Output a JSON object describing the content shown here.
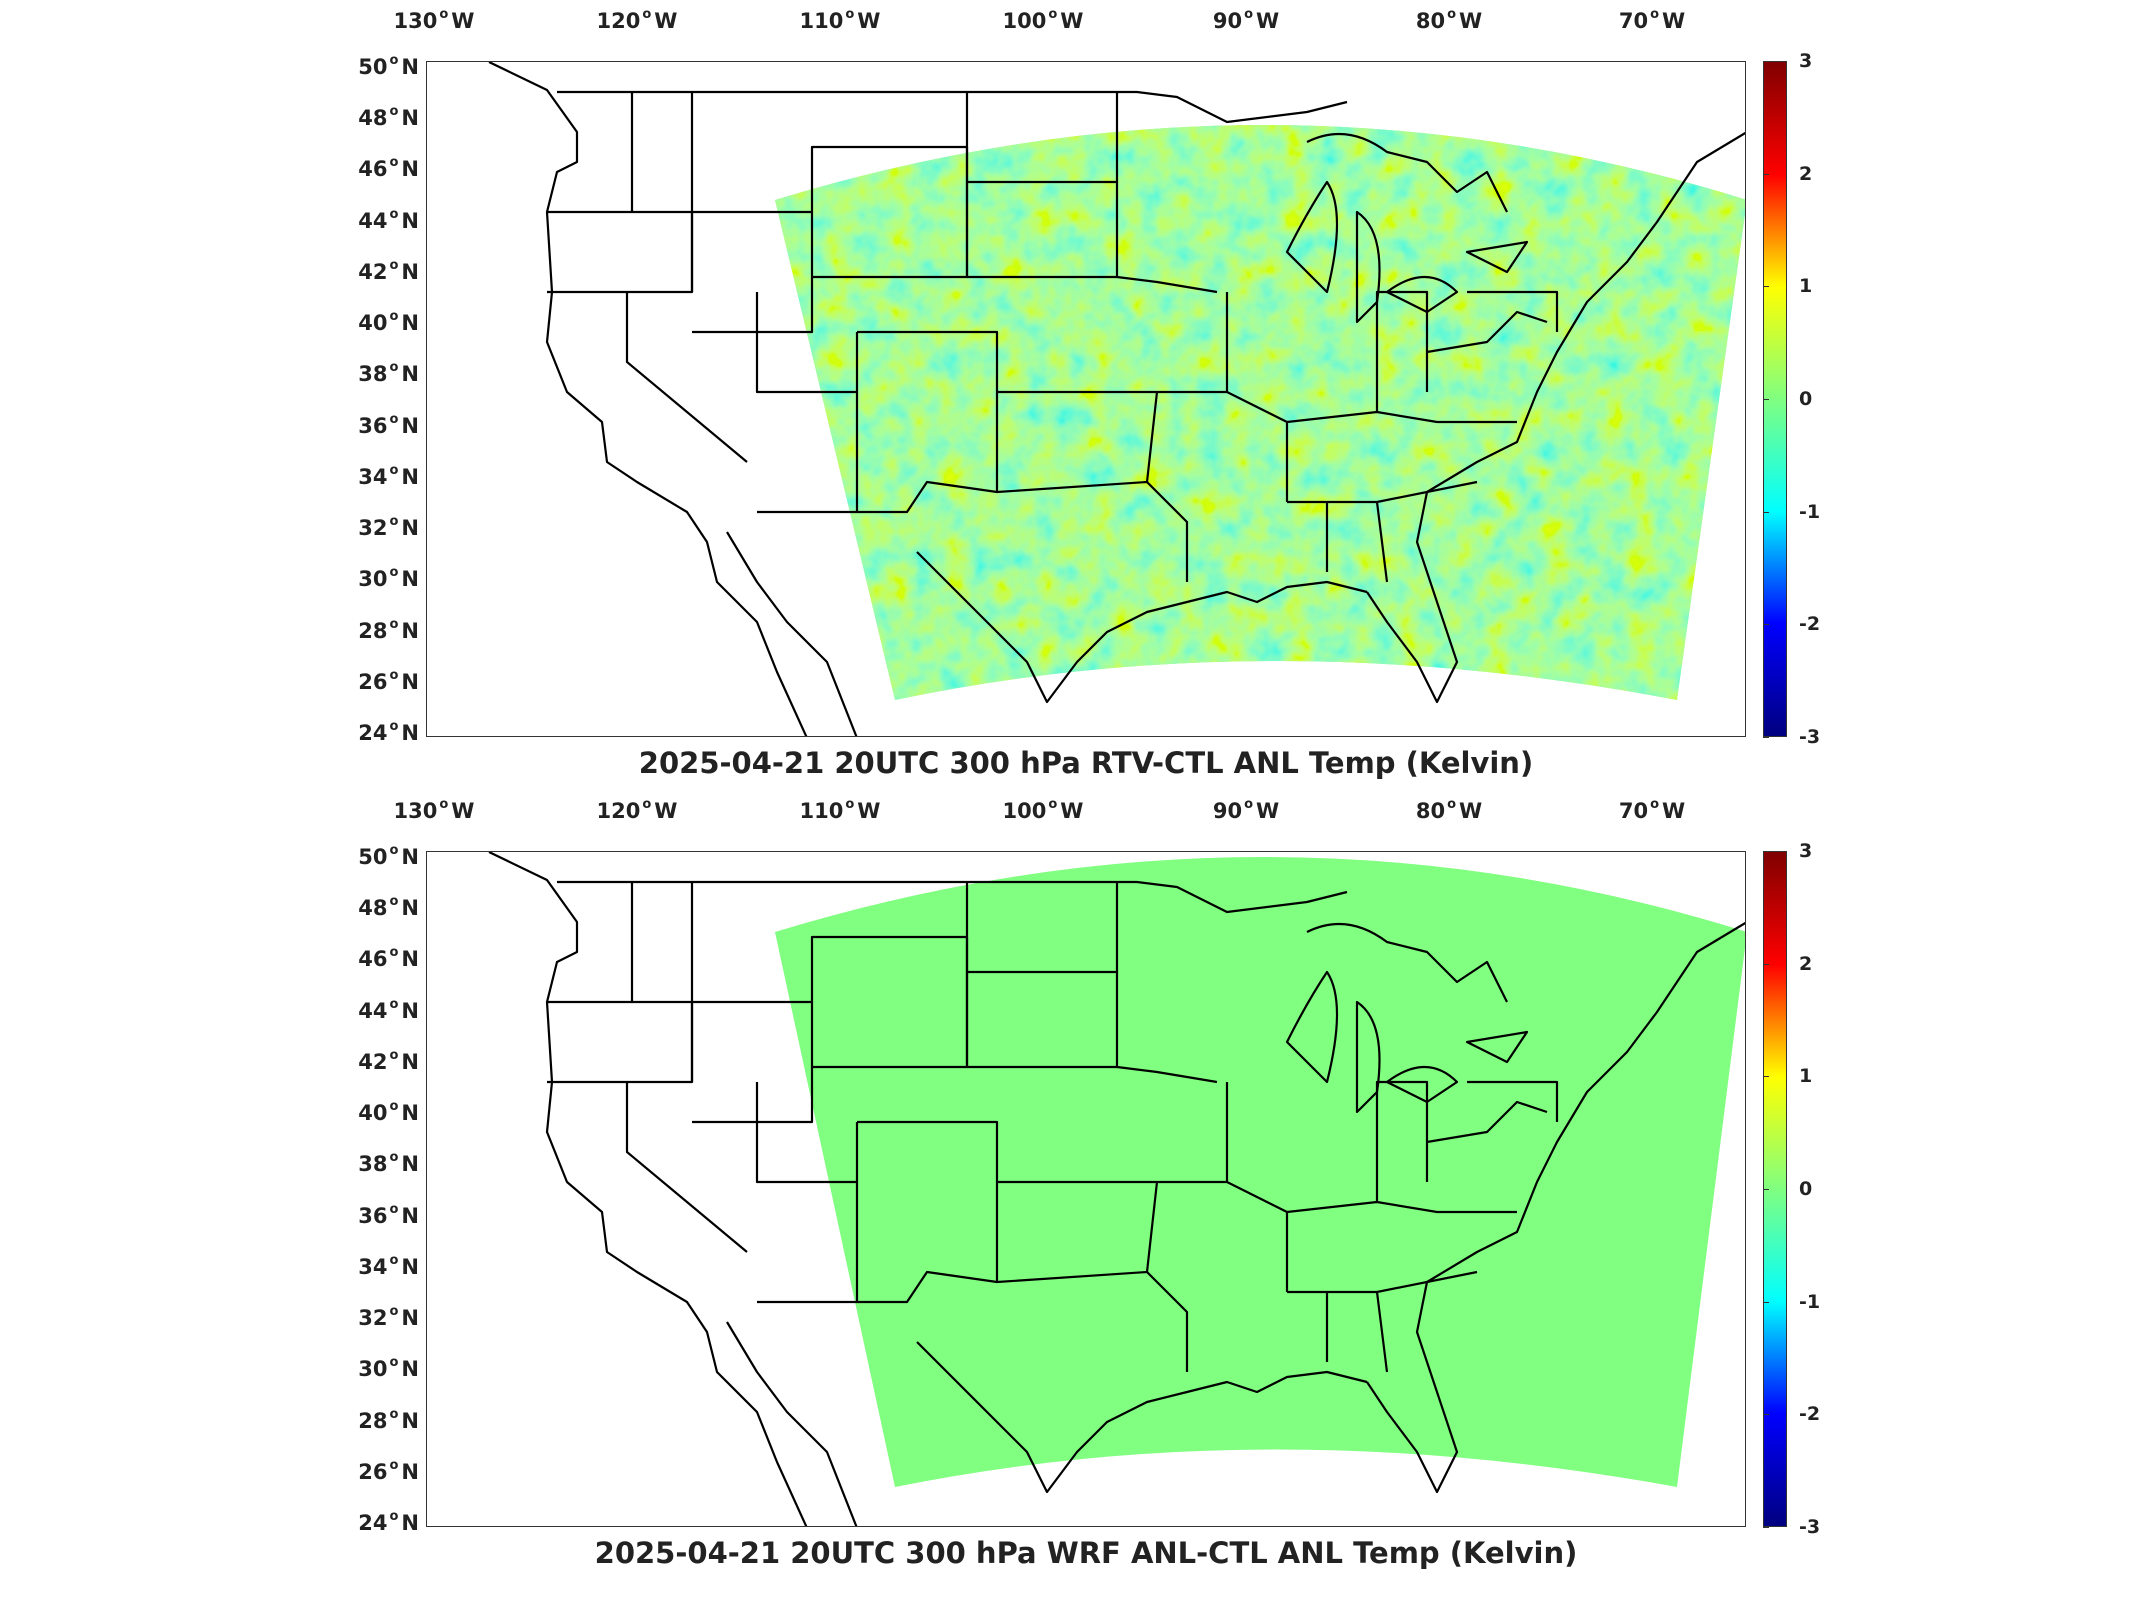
{
  "panels": [
    {
      "title": "2025-04-21 20UTC 300 hPa RTV-CTL ANL Temp (Kelvin)",
      "field_style": "variable",
      "field_values_summary": "mostly near 0 (green/cyan/yellow), range about -0.7 to 0.8"
    },
    {
      "title": "2025-04-21 20UTC 300 hPa WRF ANL-CTL ANL Temp (Kelvin)",
      "field_style": "uniform",
      "field_values_summary": "uniform 0"
    }
  ],
  "lon_ticks": [
    {
      "deg": "130",
      "hemi": "W"
    },
    {
      "deg": "120",
      "hemi": "W"
    },
    {
      "deg": "110",
      "hemi": "W"
    },
    {
      "deg": "100",
      "hemi": "W"
    },
    {
      "deg": "90",
      "hemi": "W"
    },
    {
      "deg": "80",
      "hemi": "W"
    },
    {
      "deg": "70",
      "hemi": "W"
    }
  ],
  "lat_ticks": [
    {
      "deg": "50",
      "hemi": "N"
    },
    {
      "deg": "48",
      "hemi": "N"
    },
    {
      "deg": "46",
      "hemi": "N"
    },
    {
      "deg": "44",
      "hemi": "N"
    },
    {
      "deg": "42",
      "hemi": "N"
    },
    {
      "deg": "40",
      "hemi": "N"
    },
    {
      "deg": "38",
      "hemi": "N"
    },
    {
      "deg": "36",
      "hemi": "N"
    },
    {
      "deg": "34",
      "hemi": "N"
    },
    {
      "deg": "32",
      "hemi": "N"
    },
    {
      "deg": "30",
      "hemi": "N"
    },
    {
      "deg": "28",
      "hemi": "N"
    },
    {
      "deg": "26",
      "hemi": "N"
    },
    {
      "deg": "24",
      "hemi": "N"
    }
  ],
  "colorbar": {
    "ticks": [
      "3",
      "2",
      "1",
      "0",
      "-1",
      "-2",
      "-3"
    ],
    "range": [
      -3,
      3
    ],
    "colormap": "jet",
    "colors": [
      "#000080",
      "#0000ff",
      "#00ffff",
      "#80ff80",
      "#ffff00",
      "#ff0000",
      "#800000"
    ]
  }
}
